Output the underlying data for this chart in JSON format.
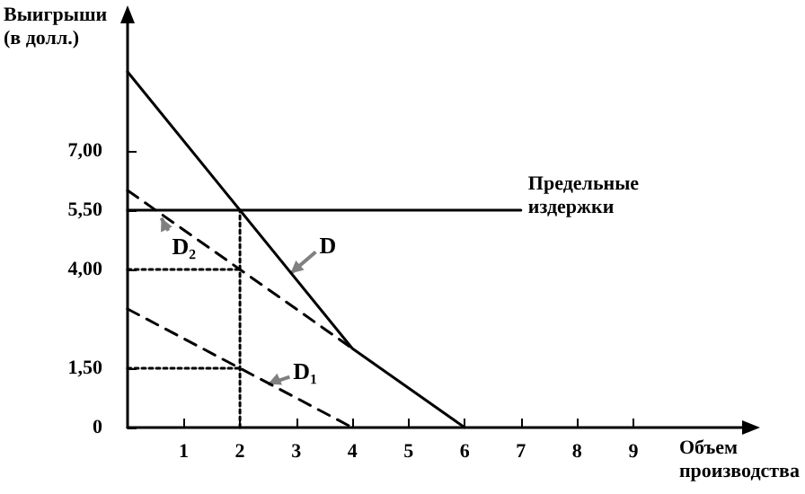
{
  "chart_data": {
    "type": "line",
    "xlabel": "Объем производства",
    "ylabel": "Выигрыши (в долл.)",
    "xlim": [
      0,
      11
    ],
    "xticks": [
      1,
      2,
      3,
      4,
      5,
      6,
      7,
      8,
      9
    ],
    "ylim": [
      0,
      10.5
    ],
    "yticks": [
      "0",
      {
        "value": 1.5,
        "label": "1,50"
      },
      {
        "value": 4,
        "label": "4,00"
      },
      {
        "value": 5.5,
        "label": "5,50"
      },
      {
        "value": 7,
        "label": "7,00"
      }
    ],
    "grid": false,
    "marker": "none",
    "series": [
      {
        "color": "#000000",
        "x": [
          0,
          2,
          4,
          6
        ],
        "values": [
          9,
          5.5,
          2,
          0
        ],
        "line_style": "solid"
      },
      {
        "color": "#000000",
        "x": [
          0,
          4
        ],
        "values": [
          6,
          2
        ],
        "line_style": "dashed"
      },
      {
        "color": "#000000",
        "x": [
          0,
          4
        ],
        "values": [
          3,
          0
        ],
        "line_style": "dashed"
      },
      {
        "color": "#000000",
        "x": [
          0,
          7
        ],
        "values": [
          5.5,
          5.5
        ],
        "line_style": "solid"
      },
      {
        "color": "#000000",
        "x": [
          0,
          2
        ],
        "values": [
          4,
          4
        ],
        "line_style": "dotted"
      },
      {
        "color": "#000000",
        "x": [
          0,
          2
        ],
        "values": [
          1.5,
          1.5
        ],
        "line_style": "dotted"
      },
      {
        "color": "#000000",
        "x": [
          2,
          2
        ],
        "values": [
          0,
          5.5
        ],
        "line_style": "dotted"
      }
    ],
    "annotations": [
      {
        "text": "D",
        "x": 2.9,
        "y": 3.9
      },
      {
        "text": "D₂",
        "x": 0.6,
        "y": 5.3
      },
      {
        "text": "D₁",
        "x": 2.5,
        "y": 1.1
      },
      {
        "text": "Предельные издержки",
        "x": 7,
        "y": 5.5
      }
    ]
  }
}
